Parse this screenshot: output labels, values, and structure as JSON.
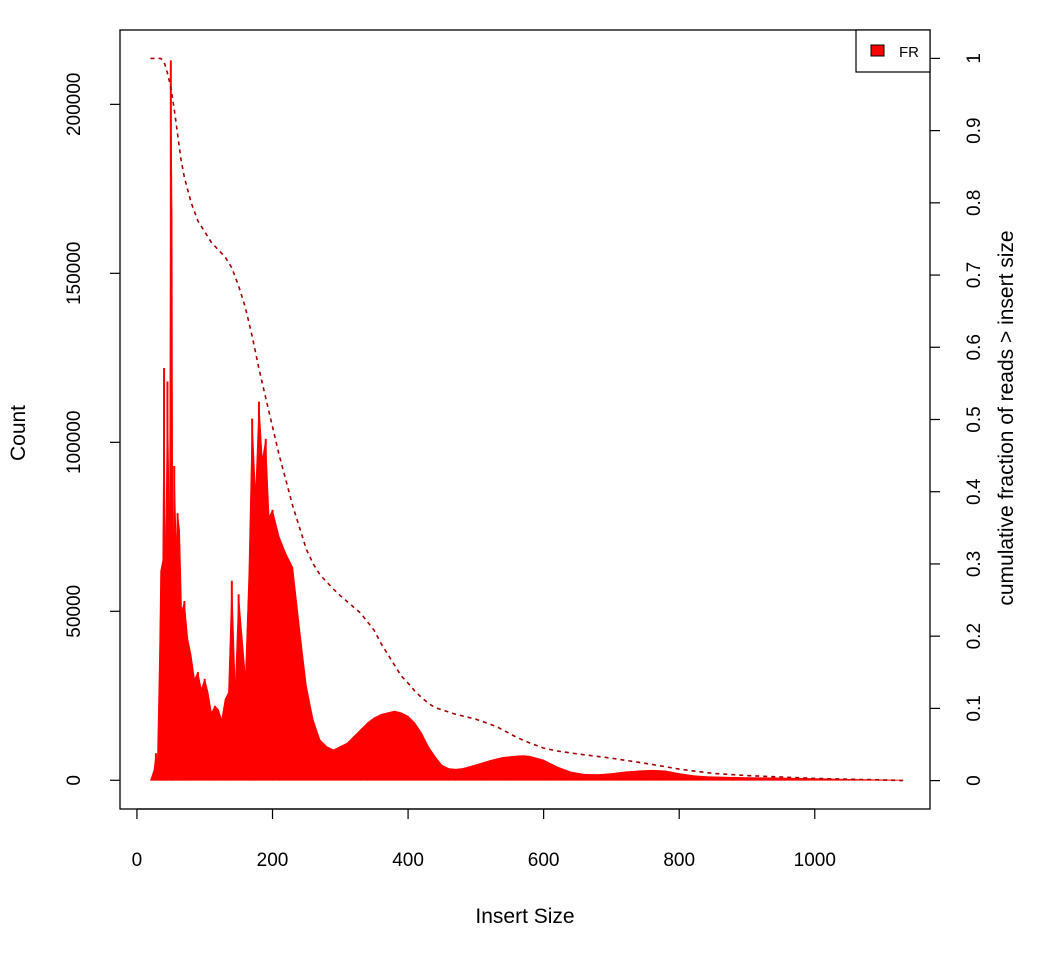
{
  "chart_data": {
    "type": "area",
    "title": "",
    "xlabel": "Insert Size",
    "ylabel": "Count",
    "y2label": "cumulative fraction of reads > insert size",
    "xlim": [
      -25,
      1170
    ],
    "ylim": [
      -8500,
      222000
    ],
    "y2lim": [
      -0.0393,
      1.0393
    ],
    "x_ticks": [
      0,
      200,
      400,
      600,
      800,
      1000
    ],
    "x_tick_labels": [
      "0",
      "200",
      "400",
      "600",
      "800",
      "1000"
    ],
    "y_ticks": [
      0,
      50000,
      100000,
      150000,
      200000
    ],
    "y_tick_labels": [
      "0",
      "50000",
      "100000",
      "150000",
      "200000"
    ],
    "y2_ticks": [
      0,
      0.1,
      0.2,
      0.3,
      0.4,
      0.5,
      0.6,
      0.7,
      0.8,
      0.9,
      1
    ],
    "y2_tick_labels": [
      "0",
      "0.1",
      "0.2",
      "0.3",
      "0.4",
      "0.5",
      "0.6",
      "0.7",
      "0.8",
      "0.9",
      "1"
    ],
    "legend": {
      "position": "top-right",
      "entries": [
        "FR"
      ]
    },
    "grid": false,
    "series": [
      {
        "name": "FR",
        "kind": "histogram",
        "color": "#ff0000",
        "x": [
          20,
          25,
          28,
          30,
          33,
          35,
          38,
          40,
          42,
          45,
          48,
          50,
          52,
          53,
          55,
          58,
          60,
          63,
          66,
          70,
          75,
          80,
          85,
          90,
          95,
          100,
          105,
          110,
          115,
          120,
          125,
          130,
          135,
          140,
          145,
          150,
          155,
          160,
          165,
          170,
          175,
          180,
          185,
          190,
          195,
          200,
          210,
          220,
          230,
          240,
          250,
          260,
          270,
          280,
          290,
          300,
          310,
          320,
          330,
          340,
          350,
          360,
          370,
          380,
          390,
          400,
          410,
          420,
          430,
          440,
          450,
          460,
          470,
          480,
          490,
          500,
          520,
          540,
          560,
          570,
          580,
          600,
          620,
          640,
          660,
          680,
          700,
          720,
          740,
          760,
          780,
          800,
          820,
          840,
          860,
          880,
          900,
          950,
          1000,
          1050,
          1100,
          1130
        ],
        "values": [
          0,
          3000,
          8000,
          5000,
          35000,
          62000,
          65000,
          122000,
          60000,
          118000,
          75000,
          213000,
          165000,
          62000,
          93000,
          70000,
          79000,
          74000,
          50000,
          53000,
          42000,
          37000,
          30000,
          32000,
          27000,
          30000,
          26000,
          20000,
          22000,
          21000,
          18000,
          24000,
          26000,
          59000,
          28000,
          55000,
          43000,
          31000,
          61000,
          107000,
          85000,
          112000,
          95000,
          101000,
          78000,
          80000,
          72000,
          67000,
          63000,
          45000,
          28000,
          18000,
          12000,
          10000,
          9000,
          10000,
          11000,
          13000,
          15000,
          17000,
          18500,
          19500,
          20000,
          20500,
          20000,
          19000,
          17000,
          14000,
          10000,
          7000,
          4500,
          3500,
          3300,
          3500,
          4000,
          4600,
          5800,
          6800,
          7200,
          7300,
          7100,
          6000,
          4000,
          2500,
          1800,
          1700,
          2000,
          2500,
          2800,
          3000,
          2800,
          2000,
          1400,
          1100,
          1000,
          900,
          800,
          700,
          500,
          300,
          150,
          50
        ]
      },
      {
        "name": "cumulative fraction of reads > insert size",
        "kind": "line",
        "axis": "right",
        "color": "#a50000",
        "dashed": true,
        "x": [
          20,
          25,
          30,
          35,
          40,
          45,
          50,
          55,
          60,
          65,
          70,
          80,
          90,
          100,
          110,
          120,
          130,
          140,
          150,
          160,
          170,
          180,
          190,
          200,
          210,
          220,
          230,
          240,
          250,
          260,
          270,
          280,
          290,
          300,
          310,
          320,
          330,
          340,
          350,
          360,
          370,
          380,
          390,
          400,
          410,
          420,
          430,
          440,
          450,
          470,
          500,
          530,
          560,
          580,
          600,
          620,
          650,
          700,
          750,
          800,
          850,
          900,
          950,
          1000,
          1050,
          1100,
          1130
        ],
        "values": [
          1.0,
          1.0,
          1.0,
          1.0,
          0.995,
          0.98,
          0.96,
          0.93,
          0.895,
          0.86,
          0.835,
          0.8,
          0.775,
          0.76,
          0.745,
          0.735,
          0.725,
          0.71,
          0.685,
          0.655,
          0.615,
          0.57,
          0.53,
          0.49,
          0.45,
          0.415,
          0.38,
          0.35,
          0.32,
          0.3,
          0.285,
          0.275,
          0.265,
          0.256,
          0.248,
          0.24,
          0.232,
          0.22,
          0.208,
          0.19,
          0.175,
          0.16,
          0.145,
          0.135,
          0.124,
          0.115,
          0.107,
          0.101,
          0.098,
          0.092,
          0.085,
          0.075,
          0.06,
          0.052,
          0.045,
          0.041,
          0.037,
          0.031,
          0.024,
          0.016,
          0.01,
          0.007,
          0.005,
          0.003,
          0.002,
          0.001,
          0.0
        ]
      }
    ]
  }
}
